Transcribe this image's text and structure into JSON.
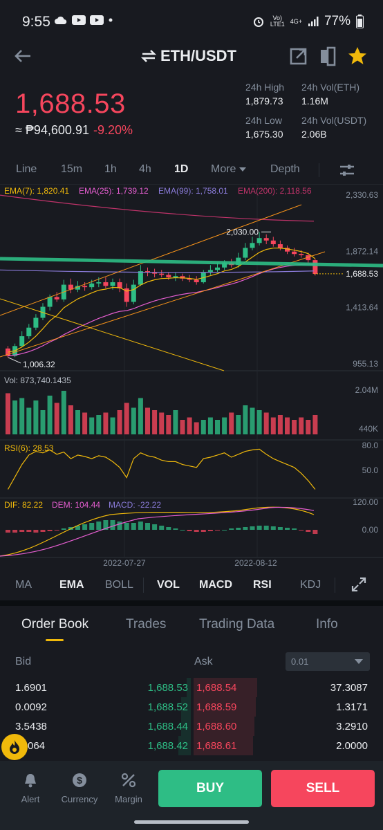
{
  "status": {
    "time": "9:55",
    "battery": "77%",
    "net1": "Vo)",
    "net2": "LTE1",
    "net3": "4G+"
  },
  "header": {
    "pair": "ETH/USDT"
  },
  "price": {
    "last": "1,688.53",
    "fiat": "≈ ₱94,600.91",
    "change": "-9.20%"
  },
  "stats": {
    "high_label": "24h High",
    "high": "1,879.73",
    "vol_eth_label": "24h Vol(ETH)",
    "vol_eth": "1.16M",
    "low_label": "24h Low",
    "low": "1,675.30",
    "vol_usdt_label": "24h Vol(USDT)",
    "vol_usdt": "2.06B"
  },
  "timeframes": [
    "Line",
    "15m",
    "1h",
    "4h",
    "1D",
    "More",
    "Depth"
  ],
  "active_timeframe": "1D",
  "chart": {
    "ema7": "EMA(7): 1,820.41",
    "ema25": "EMA(25): 1,739.12",
    "ema99": "EMA(99): 1,758.01",
    "ema200": "EMA(200): 2,118.56",
    "y_ticks": [
      "2,330.63",
      "1,872.14",
      "1,413.64",
      "955.13"
    ],
    "current_price": "1,688.53",
    "max_label": "2,030.00",
    "min_label": "1,006.32",
    "vol_label": "Vol: 873,740.1435",
    "vol_ticks": [
      "2.04M",
      "440K"
    ],
    "rsi_label": "RSI(6): 28.53",
    "rsi_ticks": [
      "80.0",
      "50.0"
    ],
    "dif": "DIF: 82.22",
    "dem": "DEM: 104.44",
    "macd": "MACD: -22.22",
    "macd_ticks": [
      "120.00",
      "0.00"
    ],
    "x_dates": [
      "2022-07-27",
      "2022-08-12"
    ],
    "colors": {
      "up": "#2ebd85",
      "down": "#f6465d",
      "ema7": "#f0b90b",
      "ema25": "#e65ed1",
      "ema99": "#8a7bd9",
      "ema200": "#c0336a",
      "trend": "#f7931a"
    }
  },
  "indicators": [
    "MA",
    "EMA",
    "BOLL",
    "VOL",
    "MACD",
    "RSI",
    "KDJ"
  ],
  "active_indicators": [
    "EMA",
    "VOL",
    "MACD",
    "RSI"
  ],
  "tabs": [
    "Order Book",
    "Trades",
    "Trading Data",
    "Info"
  ],
  "order_book": {
    "bid_label": "Bid",
    "ask_label": "Ask",
    "decimals": "0.01",
    "rows": [
      {
        "bid_qty": "1.6901",
        "bid_price": "1,688.53",
        "ask_price": "1,688.54",
        "ask_qty": "37.3087"
      },
      {
        "bid_qty": "0.0092",
        "bid_price": "1,688.52",
        "ask_price": "1,688.59",
        "ask_qty": "1.3171"
      },
      {
        "bid_qty": "3.5438",
        "bid_price": "1,688.44",
        "ask_price": "1,688.60",
        "ask_qty": "3.2910"
      },
      {
        "bid_qty": "064",
        "bid_price": "1,688.42",
        "ask_price": "1,688.61",
        "ask_qty": "2.0000"
      }
    ]
  },
  "bottom": {
    "alert": "Alert",
    "currency": "Currency",
    "margin": "Margin",
    "buy": "BUY",
    "sell": "SELL"
  }
}
